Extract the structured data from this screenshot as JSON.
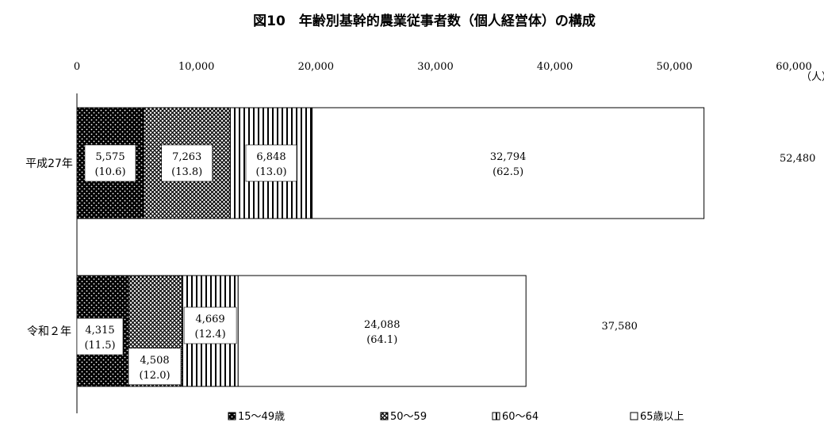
{
  "chart_data": {
    "type": "bar",
    "orientation": "horizontal",
    "stacked": true,
    "title": "図10　年齢別基幹的農業従事者数（個人経営体）の構成",
    "xunit": "（人）",
    "xlim": [
      0,
      60000
    ],
    "xticks": [
      "0",
      "10,000",
      "20,000",
      "30,000",
      "40,000",
      "50,000",
      "60,000"
    ],
    "categories": [
      "平成27年",
      "令和２年"
    ],
    "series": [
      {
        "name": "15～49歳",
        "pattern": "dots-dark",
        "values": [
          5575,
          4315
        ],
        "labels": [
          "5,575",
          "4,315"
        ],
        "pct": [
          "(10.6)",
          "(11.5)"
        ]
      },
      {
        "name": "50～59",
        "pattern": "crosshatch",
        "values": [
          7263,
          4508
        ],
        "labels": [
          "7,263",
          "4,508"
        ],
        "pct": [
          "(13.8)",
          "(12.0)"
        ]
      },
      {
        "name": "60～64",
        "pattern": "vertical-lines",
        "values": [
          6848,
          4669
        ],
        "labels": [
          "6,848",
          "4,669"
        ],
        "pct": [
          "(13.0)",
          "(12.4)"
        ]
      },
      {
        "name": "65歳以上",
        "pattern": "white",
        "values": [
          32794,
          24088
        ],
        "labels": [
          "32,794",
          "24,088"
        ],
        "pct": [
          "(62.5)",
          "(64.1)"
        ]
      }
    ],
    "totals": [
      "52,480",
      "37,580"
    ],
    "grid": false,
    "legend_position": "bottom"
  }
}
